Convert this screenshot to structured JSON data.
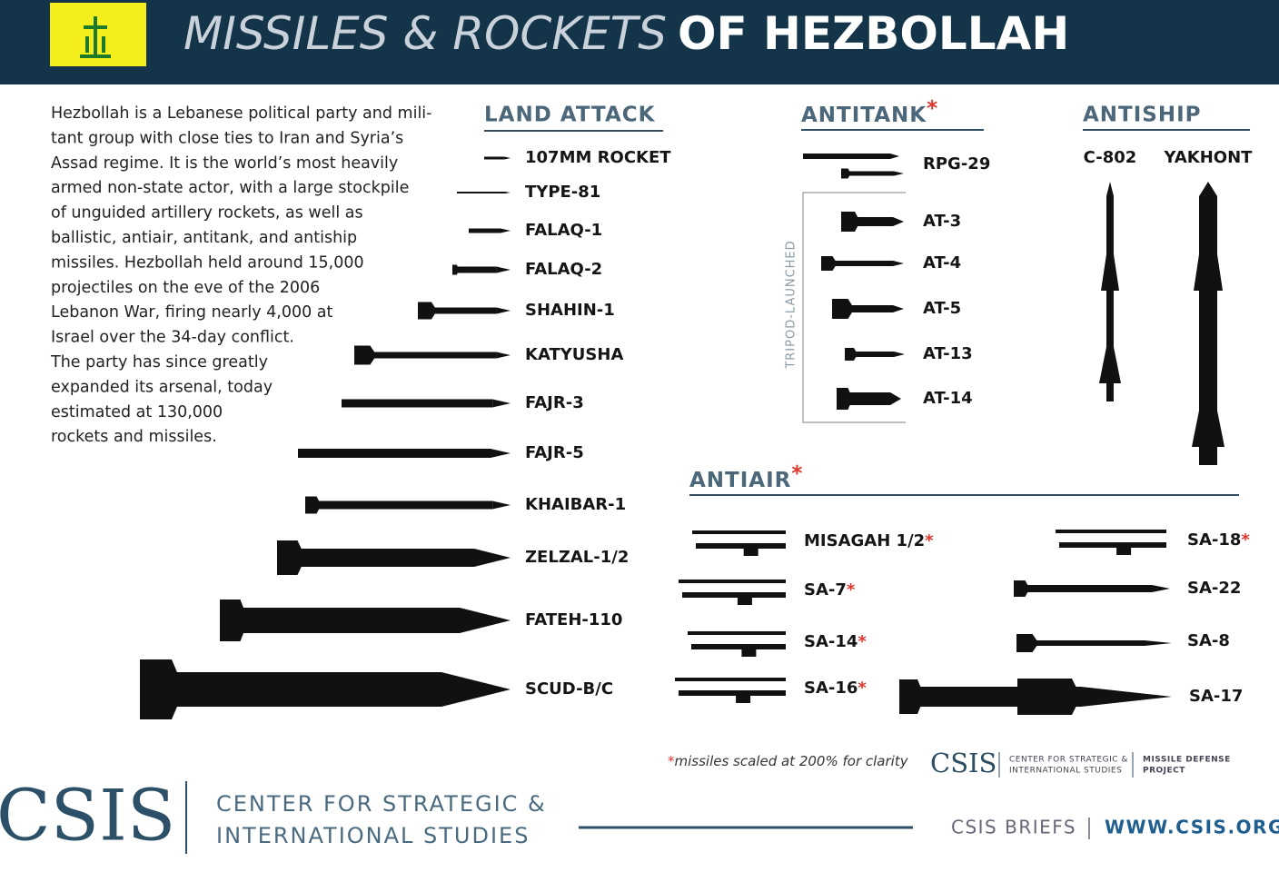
{
  "header": {
    "title_light": "MISSILES & ROCKETS",
    "title_bold": "OF HEZBOLLAH"
  },
  "intro": {
    "lines": [
      "Hezbollah is a Lebanese political party and mili-",
      "tant group with close ties to Iran and Syria’s",
      "Assad regime. It is the world’s most heavily",
      "armed non-state actor, with a large stockpile",
      "of unguided artillery rockets, as well as",
      "ballistic, antiair, antitank, and antiship",
      "missiles. Hezbollah held around 15,000",
      "projectiles on the eve of the 2006",
      "Lebanon War, firing nearly 4,000 at",
      "Israel over the 34-day conflict.",
      "The party has since greatly",
      "expanded its arsenal, today",
      "estimated at 130,000",
      "rockets and missiles."
    ]
  },
  "land_attack": {
    "title": "LAND ATTACK",
    "items": [
      "107MM ROCKET",
      "TYPE-81",
      "FALAQ-1",
      "FALAQ-2",
      "SHAHIN-1",
      "KATYUSHA",
      "FAJR-3",
      "FAJR-5",
      "KHAIBAR-1",
      "ZELZAL-1/2",
      "FATEH-110",
      "SCUD-B/C"
    ]
  },
  "antitank": {
    "title": "ANTITANK",
    "note": "*",
    "tripod_label": "TRIPOD-LAUNCHED",
    "items": [
      "RPG-29",
      "AT-3",
      "AT-4",
      "AT-5",
      "AT-13",
      "AT-14"
    ]
  },
  "antiship": {
    "title": "ANTISHIP",
    "items": [
      "C-802",
      "YAKHONT"
    ]
  },
  "antiair": {
    "title": "ANTIAIR",
    "note": "*",
    "items": [
      {
        "name": "MISAGAH 1/2",
        "note": "*"
      },
      {
        "name": "SA-7",
        "note": "*"
      },
      {
        "name": "SA-14",
        "note": "*"
      },
      {
        "name": "SA-16",
        "note": "*"
      },
      {
        "name": "SA-18",
        "note": "*"
      },
      {
        "name": "SA-22"
      },
      {
        "name": "SA-8"
      },
      {
        "name": "SA-17"
      }
    ]
  },
  "footnote": {
    "mark": "*",
    "text": "missiles scaled at 200% for clarity"
  },
  "small_logo": {
    "name": "CSIS",
    "org_line1": "CENTER FOR STRATEGIC &",
    "org_line2": "INTERNATIONAL STUDIES",
    "project_line1": "MISSILE DEFENSE",
    "project_line2": "PROJECT"
  },
  "footer": {
    "logo": "CSIS",
    "org_line1": "CENTER FOR STRATEGIC &",
    "org_line2": "INTERNATIONAL STUDIES",
    "briefs": "CSIS BRIEFS",
    "url": "WWW.CSIS.ORG"
  }
}
